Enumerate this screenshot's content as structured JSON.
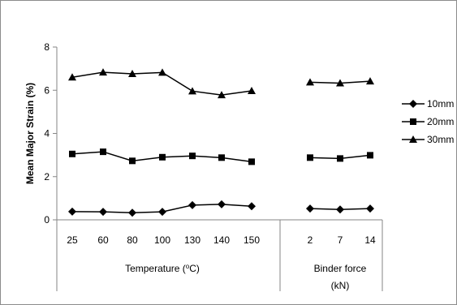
{
  "chart_data": {
    "type": "line",
    "ylabel": "Mean Major Strain (%)",
    "ylim": [
      0,
      8
    ],
    "yticks": [
      "0",
      "2",
      "4",
      "6",
      "8"
    ],
    "groups": [
      {
        "label": "Temperature (°C)",
        "label_base": "Temperature (",
        "label_sup": "o",
        "label_tail": "C)",
        "categories": [
          "25",
          "60",
          "80",
          "100",
          "130",
          "140",
          "150"
        ]
      },
      {
        "label": "Binder force (kN)",
        "label_line1": "Binder force",
        "label_line2": "(kN)",
        "categories": [
          "2",
          "7",
          "14"
        ]
      }
    ],
    "series": [
      {
        "name": "10mm",
        "marker": "diamond",
        "groups": [
          [
            0.38,
            0.37,
            0.33,
            0.37,
            0.68,
            0.72,
            0.63
          ],
          [
            0.52,
            0.48,
            0.52
          ]
        ]
      },
      {
        "name": "20mm",
        "marker": "square",
        "groups": [
          [
            3.05,
            3.15,
            2.73,
            2.9,
            2.96,
            2.88,
            2.69
          ],
          [
            2.88,
            2.84,
            2.99
          ]
        ]
      },
      {
        "name": "30mm",
        "marker": "triangle",
        "groups": [
          [
            6.6,
            6.83,
            6.76,
            6.82,
            5.96,
            5.78,
            5.97
          ],
          [
            6.37,
            6.33,
            6.42
          ]
        ]
      }
    ],
    "grid": false,
    "legend": "right",
    "line_color": "#000000"
  }
}
